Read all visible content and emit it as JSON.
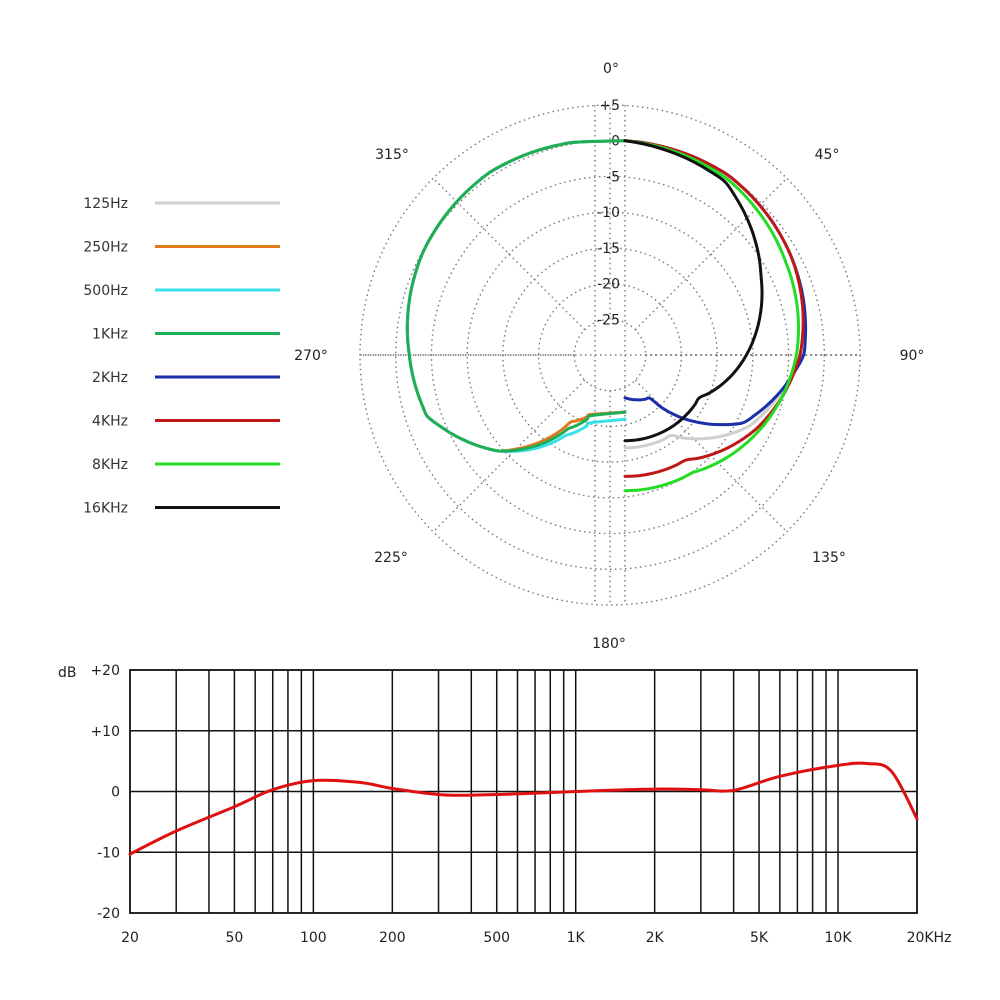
{
  "chart_data": [
    {
      "type": "polar",
      "angle_labels": {
        "a0": "0°",
        "a45": "45°",
        "a90": "90°",
        "a135": "135°",
        "a180": "180°",
        "a225": "225°",
        "a270": "270°",
        "a315": "315°"
      },
      "radial_labels": [
        "+5",
        "0",
        "-5",
        "-10",
        "-15",
        "-20",
        "-25"
      ],
      "rlim": [
        -30,
        5
      ],
      "series": [
        {
          "name": "125Hz",
          "color": "#cfcfcf",
          "points": [
            [
              0,
              0
            ],
            [
              30,
              -1
            ],
            [
              60,
              -3
            ],
            [
              90,
              -5.5
            ],
            [
              120,
              -10
            ],
            [
              150,
              -17
            ],
            [
              180,
              -17
            ]
          ]
        },
        {
          "name": "250Hz",
          "color": "#e07a1e",
          "points": [
            [
              180,
              -22
            ],
            [
              200,
              -20
            ],
            [
              225,
              -11
            ],
            [
              250,
              -5
            ],
            [
              270,
              -4
            ],
            [
              300,
              -2
            ],
            [
              330,
              -0.5
            ],
            [
              360,
              0
            ]
          ]
        },
        {
          "name": "500Hz",
          "color": "#38e0e8",
          "points": [
            [
              180,
              -21
            ],
            [
              200,
              -18
            ],
            [
              225,
              -11
            ],
            [
              250,
              -5
            ],
            [
              270,
              -4
            ],
            [
              300,
              -2
            ],
            [
              330,
              -0.5
            ],
            [
              360,
              0
            ]
          ]
        },
        {
          "name": "1KHz",
          "color": "#1fae55",
          "points": [
            [
              180,
              -22
            ],
            [
              200,
              -19
            ],
            [
              225,
              -11
            ],
            [
              250,
              -5
            ],
            [
              270,
              -4
            ],
            [
              300,
              -2
            ],
            [
              330,
              -0.5
            ],
            [
              360,
              0
            ]
          ]
        },
        {
          "name": "2KHz",
          "color": "#1a2fa8",
          "points": [
            [
              0,
              0
            ],
            [
              30,
              -1
            ],
            [
              60,
              -3
            ],
            [
              90,
              -5
            ],
            [
              120,
              -11
            ],
            [
              150,
              -23
            ],
            [
              180,
              -24
            ]
          ]
        },
        {
          "name": "4KHz",
          "color": "#c01818",
          "points": [
            [
              0,
              0
            ],
            [
              30,
              -1
            ],
            [
              60,
              -3
            ],
            [
              90,
              -5.5
            ],
            [
              120,
              -9
            ],
            [
              150,
              -13
            ],
            [
              180,
              -13
            ]
          ]
        },
        {
          "name": "8KHz",
          "color": "#22dd22",
          "points": [
            [
              0,
              0
            ],
            [
              30,
              -1.5
            ],
            [
              60,
              -4
            ],
            [
              90,
              -6
            ],
            [
              120,
              -8.5
            ],
            [
              150,
              -11
            ],
            [
              180,
              -11
            ]
          ]
        },
        {
          "name": "16KHz",
          "color": "#111111",
          "points": [
            [
              0,
              0
            ],
            [
              30,
              -2
            ],
            [
              60,
              -8
            ],
            [
              90,
              -13
            ],
            [
              120,
              -18
            ],
            [
              150,
              -18
            ],
            [
              180,
              -18
            ]
          ]
        }
      ]
    },
    {
      "type": "line",
      "xscale": "log",
      "xlim": [
        20,
        20000
      ],
      "ylim": [
        -20,
        20
      ],
      "ylabel": "dB",
      "ytick_labels": [
        "+20",
        "+10",
        "0",
        "-10",
        "-20"
      ],
      "ytick_values": [
        20,
        10,
        0,
        -10,
        -20
      ],
      "xtick_labels": [
        "20",
        "50",
        "100",
        "200",
        "500",
        "1K",
        "2K",
        "5K",
        "10K",
        "20KHz"
      ],
      "xtick_values": [
        20,
        50,
        100,
        200,
        500,
        1000,
        2000,
        5000,
        10000,
        20000
      ],
      "series": [
        {
          "color": "#dd1111",
          "x": [
            20,
            30,
            50,
            70,
            100,
            150,
            200,
            300,
            400,
            600,
            1000,
            2000,
            3000,
            4000,
            6000,
            10000,
            13000,
            16000,
            20000
          ],
          "y": [
            -10.3,
            -6.5,
            -2.5,
            0.3,
            1.8,
            1.5,
            0.5,
            -0.5,
            -0.6,
            -0.4,
            0,
            0.4,
            0.3,
            0.2,
            2.5,
            4.3,
            4.6,
            3.3,
            -4.5
          ]
        }
      ]
    }
  ]
}
